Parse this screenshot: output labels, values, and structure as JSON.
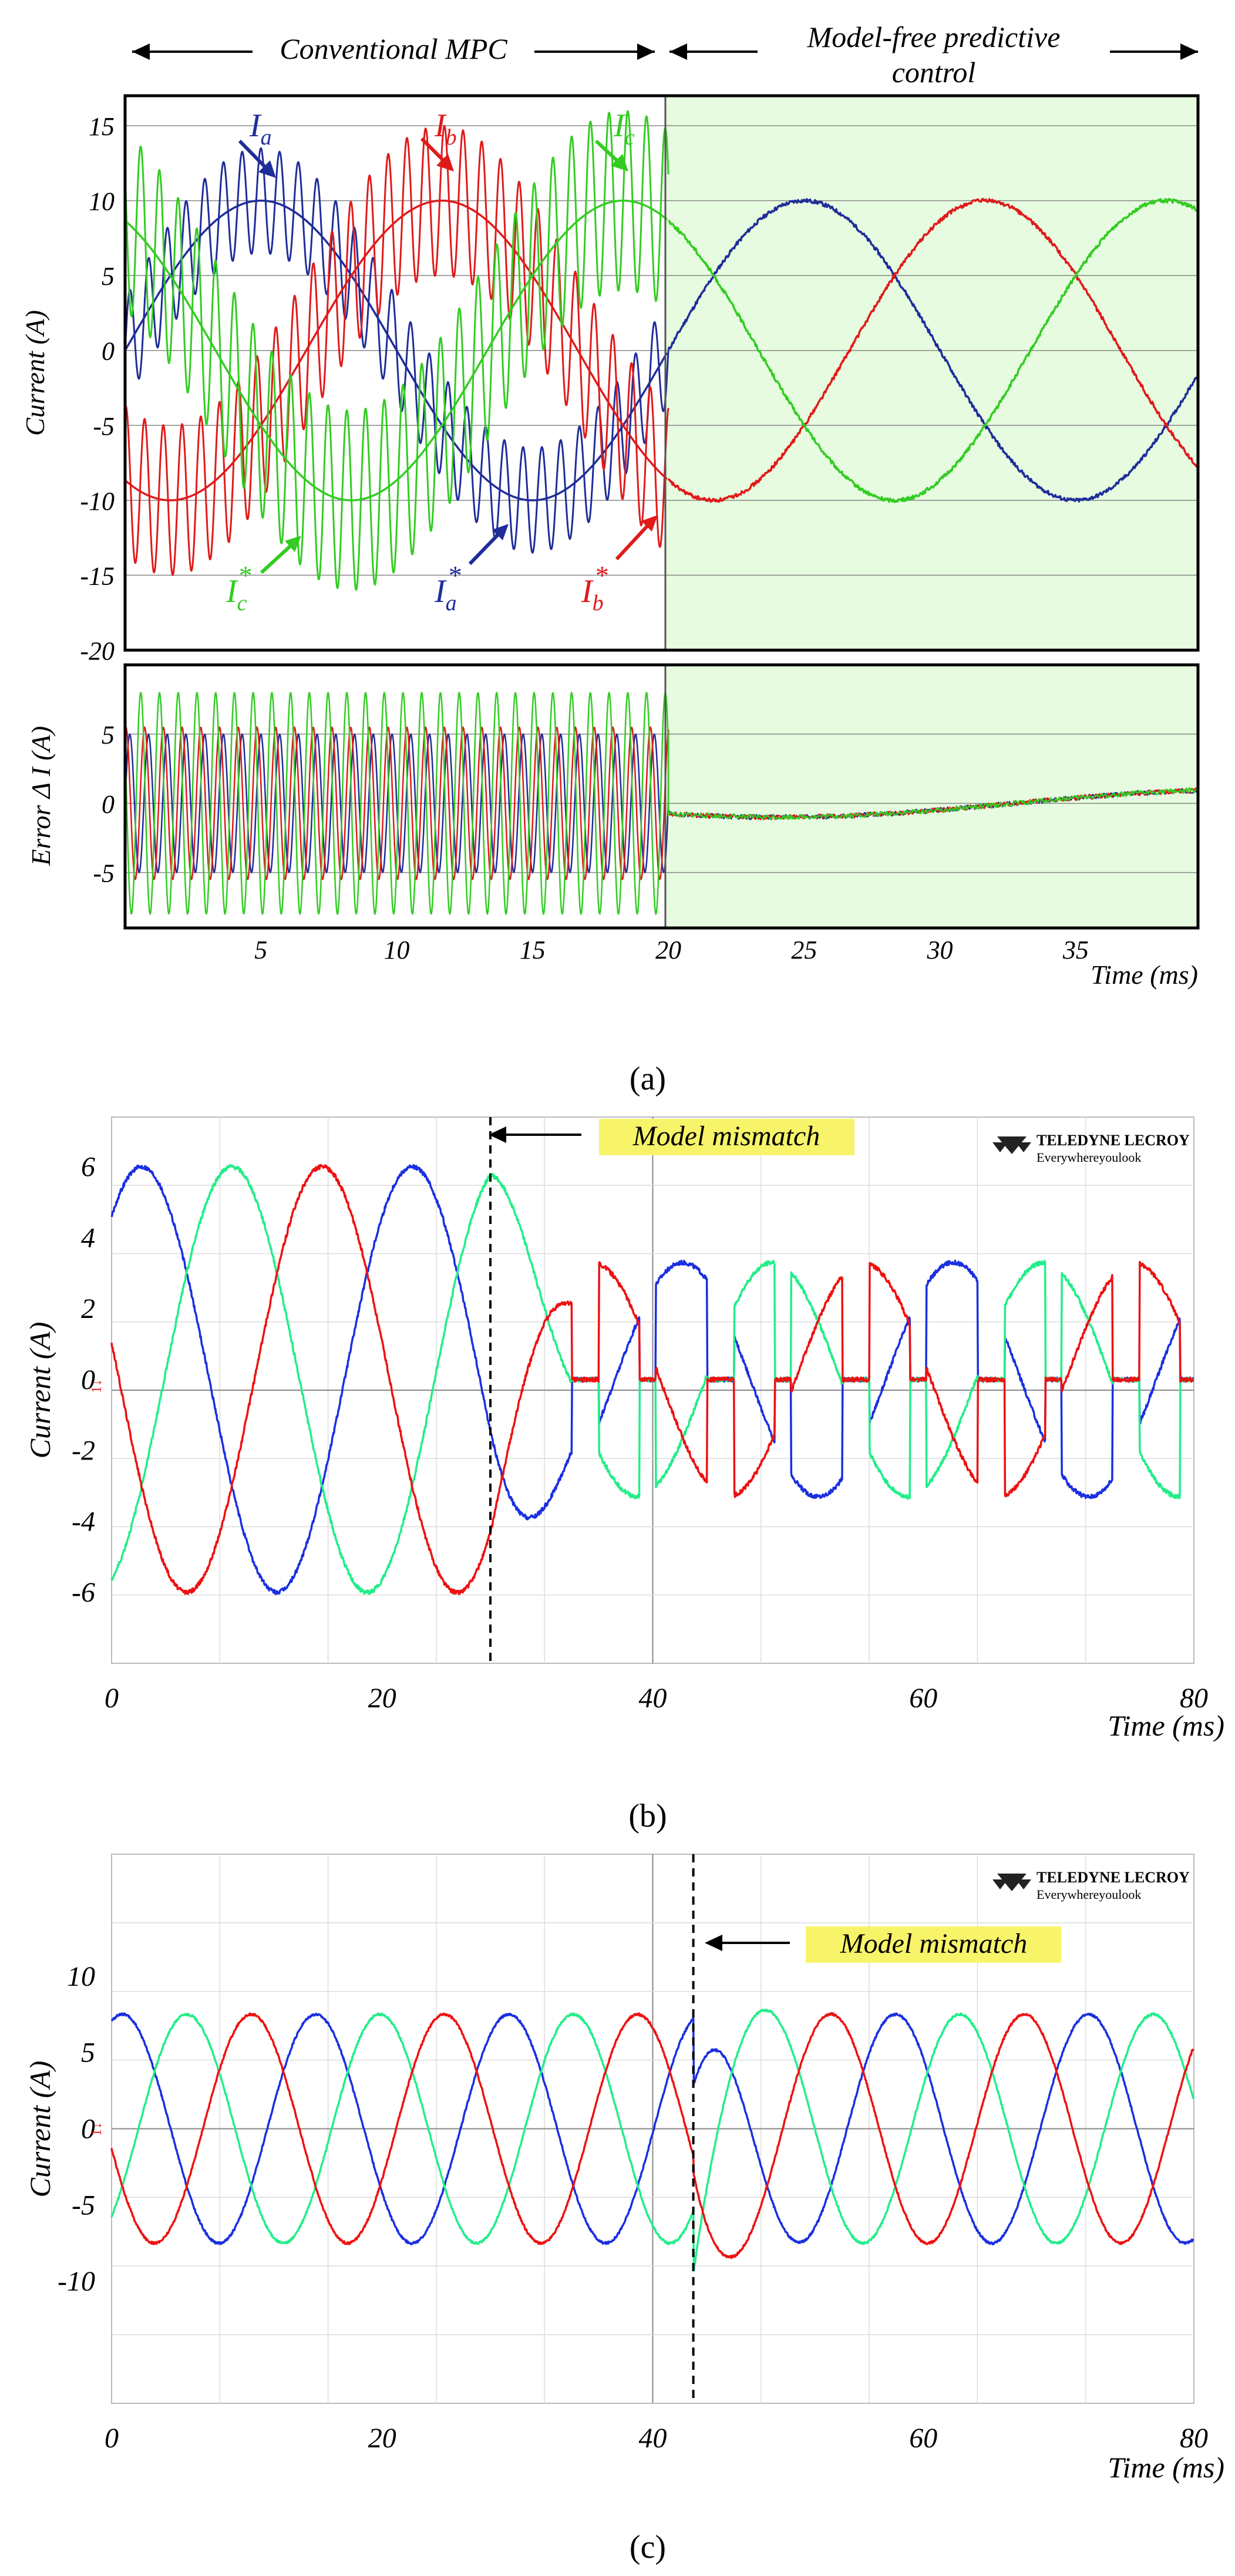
{
  "chart_data": [
    {
      "id": "a",
      "type": "line",
      "caption": "(a)",
      "section_left": "Conventional MPC",
      "section_right_line1": "Model-free predictive",
      "section_right_line2": "control",
      "xlabel": "Time (ms)",
      "xlim": [
        0,
        39.5
      ],
      "xticks": [
        5,
        10,
        15,
        20,
        25,
        30,
        35
      ],
      "switch_time": 20,
      "top_panel": {
        "ylabel": "Current (A)",
        "ylim": [
          -20,
          17
        ],
        "yticks": [
          15,
          10,
          5,
          0,
          -5,
          -10,
          -15,
          -20
        ],
        "series": [
          {
            "name": "I_a",
            "color": "#1f2d9a",
            "amplitude": 10,
            "phase_deg": 0
          },
          {
            "name": "I_b",
            "color": "#e01a1a",
            "amplitude": 10,
            "phase_deg": -120
          },
          {
            "name": "I_c",
            "color": "#33cc22",
            "amplitude": 10,
            "phase_deg": 120
          }
        ],
        "references": [
          {
            "name": "I_a*",
            "color": "#1f2d9a"
          },
          {
            "name": "I_b*",
            "color": "#e01a1a"
          },
          {
            "name": "I_c*",
            "color": "#33cc22"
          }
        ],
        "fundamental_hz": 50,
        "ripple_amplitude_mpc": [
          3.5,
          5,
          6
        ]
      },
      "bottom_panel": {
        "ylabel": "Error  Δ I (A)",
        "ylim": [
          -9,
          10
        ],
        "yticks": [
          5,
          0,
          -5
        ],
        "error_amplitude_mpc": [
          5,
          5.5,
          8
        ],
        "error_amplitude_mfpc": 1
      },
      "labels": {
        "ia": {
          "base": "I",
          "sub": "a",
          "sup": ""
        },
        "ib": {
          "base": "I",
          "sub": "b",
          "sup": ""
        },
        "ic": {
          "base": "I",
          "sub": "c",
          "sup": ""
        },
        "ia_ref": {
          "base": "I",
          "sub": "a",
          "sup": "*"
        },
        "ib_ref": {
          "base": "I",
          "sub": "b",
          "sup": "*"
        },
        "ic_ref": {
          "base": "I",
          "sub": "c",
          "sup": "*"
        }
      }
    },
    {
      "id": "b",
      "type": "line",
      "caption": "(b)",
      "ylabel": "Current (A)",
      "xlabel": "Time (ms)",
      "xlim": [
        0,
        80
      ],
      "xticks": [
        0,
        20,
        40,
        60,
        80
      ],
      "ylim": [
        -8,
        7.4
      ],
      "yticks": [
        6,
        4,
        2,
        0,
        -2,
        -4,
        -6
      ],
      "mismatch_time": 28,
      "annotation": "Model mismatch",
      "brand_line1": "TELEDYNE LECROY",
      "brand_line2": "Everywhereyoulook",
      "channel_marker": "1↓",
      "series": [
        {
          "name": "phase 1",
          "color": "#1a2fe0",
          "amplitude": 6,
          "phase_deg": 50
        },
        {
          "name": "phase 2",
          "color": "#22ee88",
          "amplitude": 6,
          "phase_deg": -70
        },
        {
          "name": "phase 3",
          "color": "#ee1111",
          "amplitude": 6,
          "phase_deg": 170
        }
      ],
      "fundamental_hz": 50
    },
    {
      "id": "c",
      "type": "line",
      "caption": "(c)",
      "ylabel": "Current (A)",
      "xlabel": "Time (ms)",
      "xlim": [
        0,
        80
      ],
      "xticks": [
        0,
        20,
        40,
        60,
        80
      ],
      "ylim": [
        -18,
        18
      ],
      "yticks": [
        10,
        5,
        0,
        -5,
        -10
      ],
      "mismatch_time": 43,
      "annotation": "Model mismatch",
      "brand_line1": "TELEDYNE LECROY",
      "brand_line2": "Everywhereyoulook",
      "channel_marker": "1↓",
      "series": [
        {
          "name": "phase 1",
          "color": "#1a2fe0",
          "amplitude": 7.5,
          "phase_deg": 70
        },
        {
          "name": "phase 2",
          "color": "#22ee88",
          "amplitude": 7.5,
          "phase_deg": -50
        },
        {
          "name": "phase 3",
          "color": "#ee1111",
          "amplitude": 7.5,
          "phase_deg": 190
        }
      ],
      "fundamental_hz": 70
    }
  ]
}
